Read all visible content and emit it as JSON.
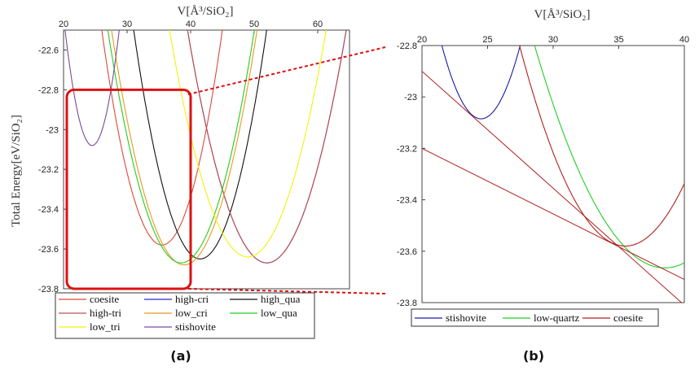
{
  "chart_data": [
    {
      "type": "line",
      "xlabel": "V[Å³/SiO₂]",
      "ylabel": "Total Energy[eV/SiO₂]",
      "xlim": [
        20,
        65
      ],
      "ylim": [
        -23.8,
        -22.5
      ],
      "x_ticks": [
        "20",
        "30",
        "40",
        "50",
        "60"
      ],
      "y_ticks": [
        "-22.6",
        "-22.8",
        "-23",
        "-23.2",
        "-23.4",
        "-23.6",
        "-23.8"
      ],
      "caption": "(a)",
      "series": [
        {
          "name": "coesite",
          "color": "#d94a3a",
          "min_x": 35.5,
          "min_y": -23.58,
          "curvature": 0.012
        },
        {
          "name": "high-cri",
          "color": "#2b2bd0",
          "min_x": 52.0,
          "min_y": -23.67,
          "curvature": 0.0075
        },
        {
          "name": "high_qua",
          "color": "#111111",
          "min_x": 41.5,
          "min_y": -23.65,
          "curvature": 0.0105
        },
        {
          "name": "high-tri",
          "color": "#c0504d",
          "min_x": 52.0,
          "min_y": -23.67,
          "curvature": 0.0075
        },
        {
          "name": "low_cri",
          "color": "#e59a1f",
          "min_x": 39.0,
          "min_y": -23.68,
          "curvature": 0.009
        },
        {
          "name": "low_qua",
          "color": "#22cc22",
          "min_x": 38.5,
          "min_y": -23.67,
          "curvature": 0.0088
        },
        {
          "name": "low_tri",
          "color": "#f2f20a",
          "min_x": 49.0,
          "min_y": -23.64,
          "curvature": 0.0075
        },
        {
          "name": "stishovite",
          "color": "#7a4a9a",
          "min_x": 24.5,
          "min_y": -23.08,
          "curvature": 0.032
        }
      ],
      "legend": [
        "coesite",
        "high-cri",
        "high_qua",
        "high-tri",
        "low_cri",
        "low_qua",
        "low_tri",
        "stishovite"
      ],
      "legend_position": "bottom",
      "zoom_box": {
        "x": [
          20,
          40
        ],
        "y": [
          -23.8,
          -22.8
        ],
        "color": "#dd1111"
      }
    },
    {
      "type": "line",
      "xlabel": "V[Å³/SiO₂]",
      "ylabel": "",
      "xlim": [
        20,
        40
      ],
      "ylim": [
        -23.8,
        -22.8
      ],
      "x_ticks": [
        "20",
        "25",
        "30",
        "35",
        "40"
      ],
      "y_ticks": [
        "-22.8",
        "-23",
        "-23.2",
        "-23.4",
        "-23.6",
        "-23.8"
      ],
      "caption": "(b)",
      "series": [
        {
          "name": "stishovite",
          "color": "#1a1aa0",
          "min_x": 24.5,
          "min_y": -23.085,
          "curvature": 0.032
        },
        {
          "name": "low-quartz",
          "color": "#22cc22",
          "min_x": 38.5,
          "min_y": -23.665,
          "curvature": 0.0088
        },
        {
          "name": "coesite",
          "color": "#b02020",
          "min_x": 35.5,
          "min_y": -23.58,
          "curvature": 0.012
        }
      ],
      "tangent_lines": [
        {
          "color": "#b02020",
          "x": [
            20,
            40
          ],
          "y": [
            -22.9,
            -23.81
          ]
        },
        {
          "color": "#b02020",
          "x": [
            20,
            40
          ],
          "y": [
            -23.2,
            -23.71
          ]
        }
      ],
      "legend": [
        "stishovite",
        "low-quartz",
        "coesite"
      ],
      "legend_position": "bottom"
    }
  ]
}
